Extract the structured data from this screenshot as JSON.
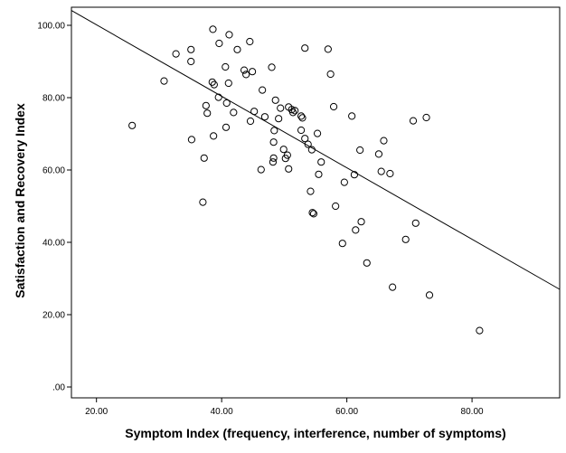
{
  "chart_data": {
    "type": "scatter",
    "xlabel": "Symptom Index (frequency, interference, number of symptoms)",
    "ylabel": "Satisfaction and Recovery Index",
    "xlim": [
      16,
      94
    ],
    "ylim": [
      -3,
      105
    ],
    "x_ticks": [
      20,
      40,
      60,
      80
    ],
    "x_tick_labels": [
      "20.00",
      "40.00",
      "60.00",
      "80.00"
    ],
    "y_ticks": [
      0,
      20,
      40,
      60,
      80,
      100
    ],
    "y_tick_labels": [
      ".00",
      "20.00",
      "40.00",
      "60.00",
      "80.00",
      "100.00"
    ],
    "grid": false,
    "legend": "none",
    "marker": "open-circle",
    "fit_line": {
      "x": [
        16,
        94
      ],
      "y": [
        104.1,
        27.0
      ]
    },
    "points": [
      {
        "x": 25.7,
        "y": 72.3
      },
      {
        "x": 30.8,
        "y": 84.6
      },
      {
        "x": 32.7,
        "y": 92.1
      },
      {
        "x": 35.1,
        "y": 93.3
      },
      {
        "x": 35.1,
        "y": 90.0
      },
      {
        "x": 35.2,
        "y": 68.4
      },
      {
        "x": 37.0,
        "y": 51.1
      },
      {
        "x": 37.2,
        "y": 63.3
      },
      {
        "x": 37.5,
        "y": 77.8
      },
      {
        "x": 37.7,
        "y": 75.7
      },
      {
        "x": 38.5,
        "y": 84.3
      },
      {
        "x": 38.8,
        "y": 83.6
      },
      {
        "x": 38.6,
        "y": 98.9
      },
      {
        "x": 38.7,
        "y": 69.4
      },
      {
        "x": 39.5,
        "y": 80.1
      },
      {
        "x": 39.6,
        "y": 95.0
      },
      {
        "x": 40.6,
        "y": 88.5
      },
      {
        "x": 40.7,
        "y": 71.8
      },
      {
        "x": 40.8,
        "y": 78.5
      },
      {
        "x": 41.1,
        "y": 84.0
      },
      {
        "x": 41.2,
        "y": 97.4
      },
      {
        "x": 41.9,
        "y": 75.9
      },
      {
        "x": 42.5,
        "y": 93.3
      },
      {
        "x": 43.6,
        "y": 87.6
      },
      {
        "x": 43.9,
        "y": 86.4
      },
      {
        "x": 44.5,
        "y": 95.5
      },
      {
        "x": 44.6,
        "y": 73.5
      },
      {
        "x": 44.9,
        "y": 87.2
      },
      {
        "x": 45.2,
        "y": 76.2
      },
      {
        "x": 46.3,
        "y": 60.1
      },
      {
        "x": 46.5,
        "y": 82.1
      },
      {
        "x": 46.9,
        "y": 74.7
      },
      {
        "x": 48.0,
        "y": 88.4
      },
      {
        "x": 48.2,
        "y": 62.2
      },
      {
        "x": 48.3,
        "y": 67.7
      },
      {
        "x": 48.3,
        "y": 63.3
      },
      {
        "x": 48.4,
        "y": 70.9
      },
      {
        "x": 48.6,
        "y": 79.3
      },
      {
        "x": 49.1,
        "y": 74.2
      },
      {
        "x": 49.4,
        "y": 77.1
      },
      {
        "x": 49.9,
        "y": 65.7
      },
      {
        "x": 50.2,
        "y": 63.2
      },
      {
        "x": 50.5,
        "y": 64.1
      },
      {
        "x": 50.7,
        "y": 77.4
      },
      {
        "x": 50.7,
        "y": 60.3
      },
      {
        "x": 51.2,
        "y": 76.7
      },
      {
        "x": 51.4,
        "y": 75.9
      },
      {
        "x": 51.7,
        "y": 76.4
      },
      {
        "x": 52.7,
        "y": 74.9
      },
      {
        "x": 52.7,
        "y": 71.0
      },
      {
        "x": 52.9,
        "y": 74.4
      },
      {
        "x": 53.3,
        "y": 68.7
      },
      {
        "x": 53.3,
        "y": 93.7
      },
      {
        "x": 53.8,
        "y": 67.1
      },
      {
        "x": 54.2,
        "y": 54.1
      },
      {
        "x": 54.4,
        "y": 65.6
      },
      {
        "x": 54.5,
        "y": 48.2
      },
      {
        "x": 54.7,
        "y": 47.9
      },
      {
        "x": 55.3,
        "y": 70.1
      },
      {
        "x": 55.5,
        "y": 58.8
      },
      {
        "x": 55.9,
        "y": 62.2
      },
      {
        "x": 57.0,
        "y": 93.4
      },
      {
        "x": 57.4,
        "y": 86.5
      },
      {
        "x": 57.9,
        "y": 77.5
      },
      {
        "x": 58.2,
        "y": 50.0
      },
      {
        "x": 59.3,
        "y": 39.7
      },
      {
        "x": 59.6,
        "y": 56.6
      },
      {
        "x": 60.8,
        "y": 74.9
      },
      {
        "x": 61.2,
        "y": 58.7
      },
      {
        "x": 61.4,
        "y": 43.4
      },
      {
        "x": 62.1,
        "y": 65.5
      },
      {
        "x": 62.3,
        "y": 45.7
      },
      {
        "x": 63.2,
        "y": 34.3
      },
      {
        "x": 65.1,
        "y": 64.4
      },
      {
        "x": 65.5,
        "y": 59.6
      },
      {
        "x": 65.9,
        "y": 68.1
      },
      {
        "x": 66.9,
        "y": 59.0
      },
      {
        "x": 67.3,
        "y": 27.6
      },
      {
        "x": 69.4,
        "y": 40.8
      },
      {
        "x": 70.6,
        "y": 73.6
      },
      {
        "x": 71.0,
        "y": 45.3
      },
      {
        "x": 72.7,
        "y": 74.5
      },
      {
        "x": 73.2,
        "y": 25.4
      },
      {
        "x": 81.2,
        "y": 15.6
      }
    ]
  }
}
